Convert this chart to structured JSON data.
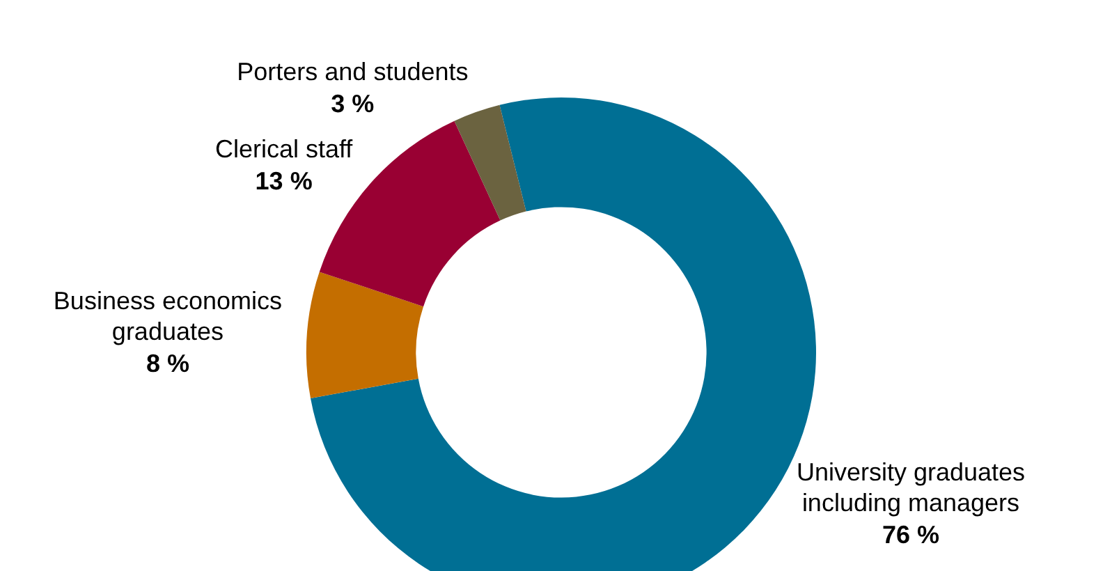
{
  "chart_data": {
    "type": "donut",
    "categories": [
      "University graduates\nincluding managers",
      "Business economics\ngraduates",
      "Clerical staff",
      "Porters and students"
    ],
    "values": [
      76,
      8,
      13,
      3
    ],
    "colors": [
      "#006f94",
      "#c46e00",
      "#990033",
      "#6b6340"
    ],
    "value_labels": [
      "76 %",
      "8 %",
      "13 %",
      "3 %"
    ],
    "legend": false
  }
}
